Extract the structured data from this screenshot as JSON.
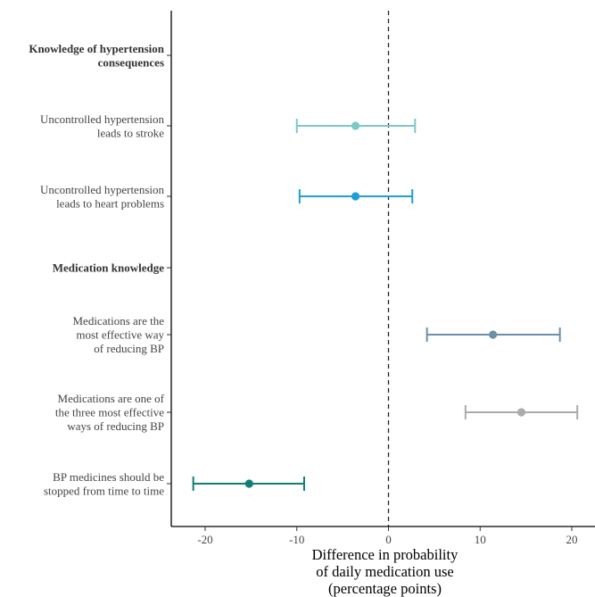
{
  "chart_data": {
    "type": "forest",
    "xlabel": [
      "Difference in probability",
      "of daily medication use",
      "(percentage points)"
    ],
    "xlim": [
      -23.5,
      21.5
    ],
    "xticks": [
      -20,
      -10,
      0,
      10,
      20
    ],
    "xtick_labels": [
      "-20",
      "-10",
      "0",
      "10",
      "20"
    ],
    "reference_line": 0,
    "grid": false,
    "rows": [
      {
        "label": [
          "Knowledge of hypertension",
          "consequences"
        ],
        "header": true
      },
      {
        "label": [
          "Uncontrolled hypertension",
          "leads to stroke"
        ],
        "estimate": -3.6,
        "low": -10.0,
        "high": 2.9,
        "color": "#7cc8c8"
      },
      {
        "label": [
          "Uncontrolled hypertension",
          "leads to heart problems"
        ],
        "estimate": -3.6,
        "low": -9.7,
        "high": 2.6,
        "color": "#1f9fd4"
      },
      {
        "label": [
          "Medication knowledge"
        ],
        "header": true
      },
      {
        "label": [
          "Medications are the",
          "most effective way",
          "of reducing BP"
        ],
        "estimate": 11.4,
        "low": 4.2,
        "high": 18.7,
        "color": "#6d8fa8"
      },
      {
        "label": [
          "Medications are one of",
          "the three most effective",
          "ways of reducing BP"
        ],
        "estimate": 14.5,
        "low": 8.4,
        "high": 20.6,
        "color": "#a9abad"
      },
      {
        "label": [
          "BP medicines should be",
          "stopped from time to time"
        ],
        "estimate": -15.2,
        "low": -21.3,
        "high": -9.2,
        "color": "#0f7f77"
      }
    ]
  }
}
